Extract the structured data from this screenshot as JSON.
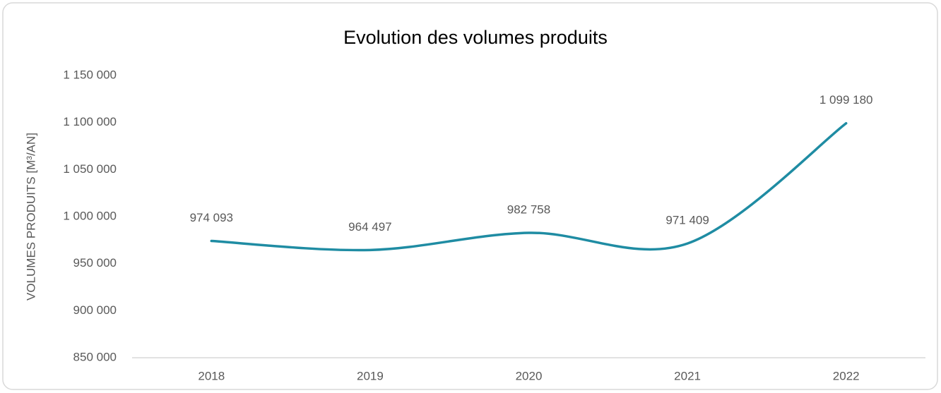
{
  "chart_data": {
    "type": "line",
    "title": "Evolution des volumes produits",
    "y_label": "VOLUMES PRODUITS [M³/AN]",
    "categories": [
      "2018",
      "2019",
      "2020",
      "2021",
      "2022"
    ],
    "series": [
      {
        "name": "Volumes produits",
        "color": "#1f8ca3",
        "values": [
          974093,
          964497,
          982758,
          971409,
          1099180
        ],
        "value_labels": [
          "974 093",
          "964 497",
          "982 758",
          "971 409",
          "1 099 180"
        ]
      }
    ],
    "ylim": [
      850000,
      1150000
    ],
    "yticks": [
      {
        "value": 850000,
        "label": "850 000"
      },
      {
        "value": 900000,
        "label": "900 000"
      },
      {
        "value": 950000,
        "label": "950 000"
      },
      {
        "value": 1000000,
        "label": "1 000 000"
      },
      {
        "value": 1050000,
        "label": "1 050 000"
      },
      {
        "value": 1100000,
        "label": "1 100 000"
      },
      {
        "value": 1150000,
        "label": "1 150 000"
      }
    ],
    "grid": false,
    "smooth": true
  }
}
